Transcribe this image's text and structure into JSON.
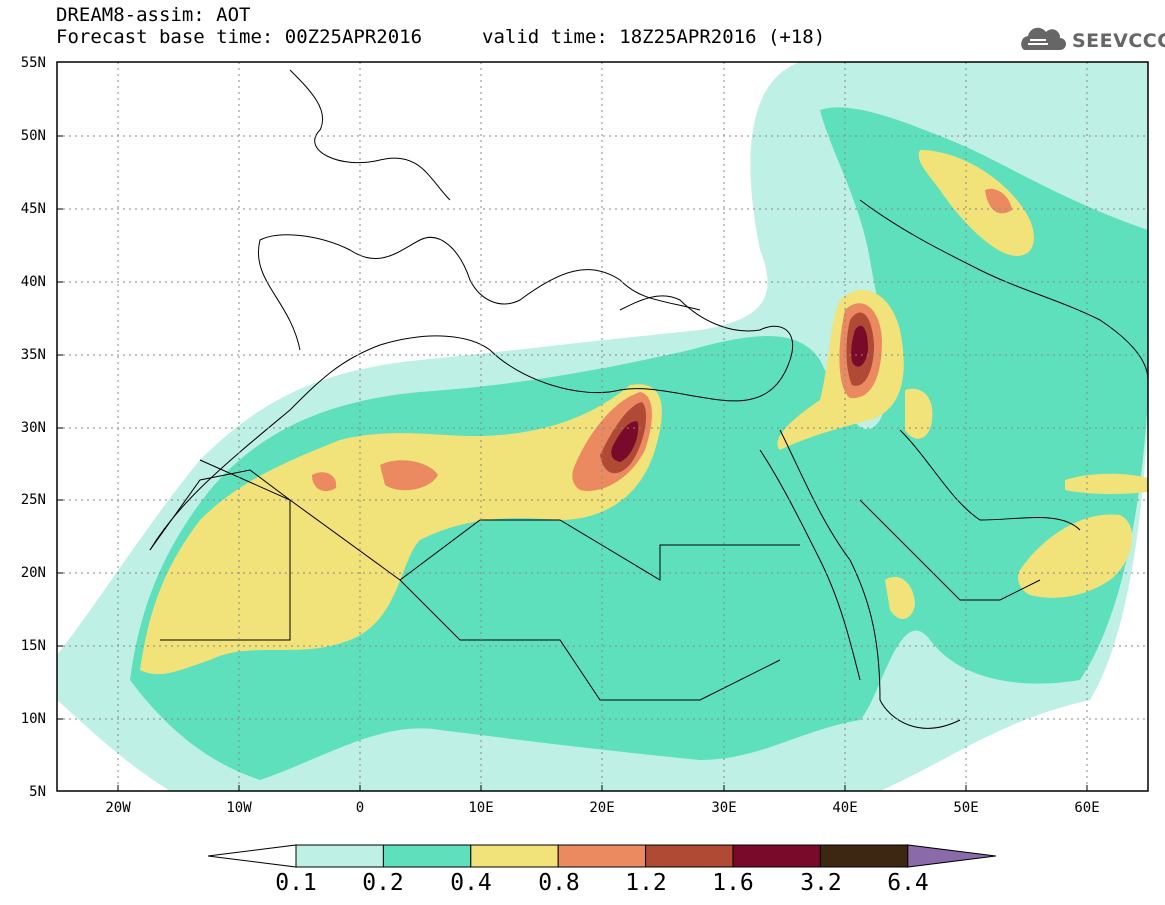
{
  "header": {
    "title": "DREAM8-assim: AOT",
    "base_time": "Forecast base time: 00Z25APR2016",
    "valid_time": "valid time: 18Z25APR2016 (+18)",
    "logo_text": "SEEVCCC",
    "logo_icon": "cloud-icon"
  },
  "map": {
    "lat_labels": [
      "55N",
      "50N",
      "45N",
      "40N",
      "35N",
      "30N",
      "25N",
      "20N",
      "15N",
      "10N",
      "5N"
    ],
    "lon_labels": [
      "20W",
      "10W",
      "0",
      "10E",
      "20E",
      "30E",
      "40E",
      "50E",
      "60E"
    ],
    "lat_range": [
      5,
      55
    ],
    "lon_range": [
      -25,
      65
    ],
    "grid": "dotted"
  },
  "colorbar": {
    "levels": [
      "0.1",
      "0.2",
      "0.4",
      "0.8",
      "1.2",
      "1.6",
      "3.2",
      "6.4"
    ],
    "colors": [
      "#ffffff",
      "#bff0e6",
      "#5ee0bc",
      "#f2e27a",
      "#eb8a60",
      "#b04a35",
      "#7a0a2a",
      "#3e2712",
      "#8a6aa8"
    ]
  }
}
